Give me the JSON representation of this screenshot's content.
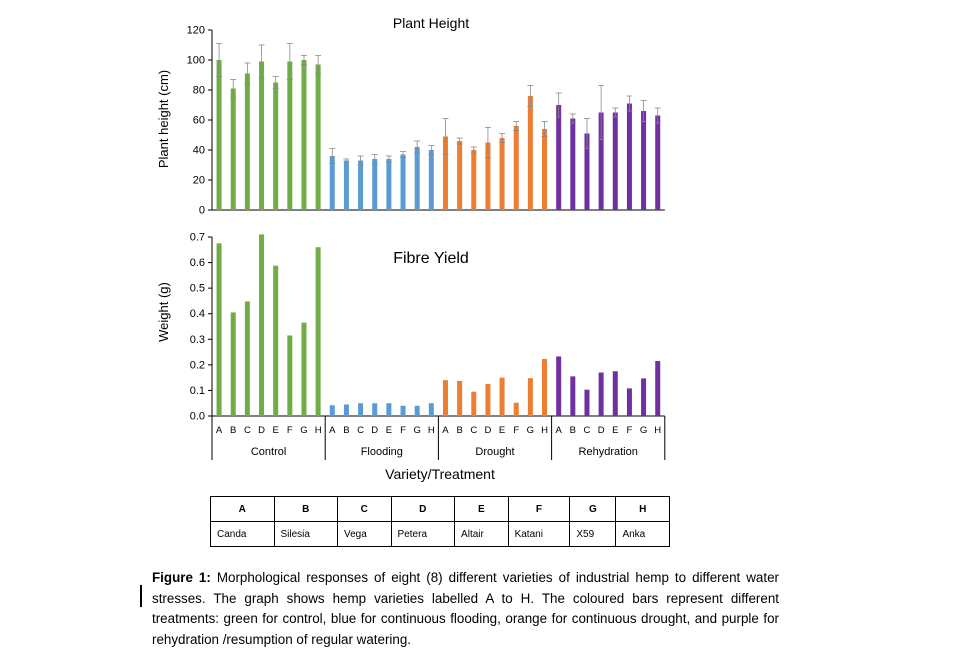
{
  "colors": {
    "control": "#70AD47",
    "flooding": "#5B9BD5",
    "drought": "#ED7D31",
    "rehydration": "#7030A0"
  },
  "chart_data": [
    {
      "type": "bar",
      "title": "Plant Height",
      "ylabel": "Plant height (cm)",
      "ylim": [
        0,
        120
      ],
      "yticks": [
        "0",
        "20",
        "40",
        "60",
        "80",
        "100",
        "120"
      ],
      "categories": [
        "A",
        "B",
        "C",
        "D",
        "E",
        "F",
        "G",
        "H"
      ],
      "error_bars": true,
      "series": [
        {
          "name": "Control",
          "values": [
            100,
            81,
            91,
            99,
            85,
            99,
            100,
            97
          ],
          "errors": [
            11,
            6,
            7,
            11,
            4,
            12,
            3,
            6
          ]
        },
        {
          "name": "Flooding",
          "values": [
            36,
            33,
            33,
            34,
            34,
            37,
            42,
            40
          ],
          "errors": [
            5,
            1,
            3,
            3,
            2,
            2,
            4,
            3
          ]
        },
        {
          "name": "Drought",
          "values": [
            49,
            46,
            40,
            45,
            48,
            56,
            76,
            54
          ],
          "errors": [
            12,
            2,
            2,
            10,
            3,
            3,
            7,
            5
          ]
        },
        {
          "name": "Rehydration",
          "values": [
            70,
            61,
            51,
            65,
            65,
            71,
            66,
            63
          ],
          "errors": [
            8,
            3,
            10,
            18,
            3,
            5,
            7,
            5
          ]
        }
      ]
    },
    {
      "type": "bar",
      "title": "Fibre Yield",
      "ylabel": "Weight (g)",
      "xlabel": "Variety/Treatment",
      "ylim": [
        0,
        0.7
      ],
      "yticks": [
        "0.0",
        "0.1",
        "0.2",
        "0.3",
        "0.4",
        "0.5",
        "0.6",
        "0.7"
      ],
      "categories": [
        "A",
        "B",
        "C",
        "D",
        "E",
        "F",
        "G",
        "H"
      ],
      "groups": [
        "Control",
        "Flooding",
        "Drought",
        "Rehydration"
      ],
      "series": [
        {
          "name": "Control",
          "values": [
            0.675,
            0.405,
            0.448,
            0.71,
            0.588,
            0.315,
            0.365,
            0.66
          ]
        },
        {
          "name": "Flooding",
          "values": [
            0.042,
            0.045,
            0.05,
            0.05,
            0.05,
            0.04,
            0.04,
            0.05
          ]
        },
        {
          "name": "Drought",
          "values": [
            0.14,
            0.137,
            0.095,
            0.125,
            0.15,
            0.052,
            0.148,
            0.223
          ]
        },
        {
          "name": "Rehydration",
          "values": [
            0.233,
            0.155,
            0.103,
            0.17,
            0.175,
            0.108,
            0.147,
            0.215
          ]
        }
      ]
    }
  ],
  "variety_table": {
    "codes": [
      "A",
      "B",
      "C",
      "D",
      "E",
      "F",
      "G",
      "H"
    ],
    "names": [
      "Canda",
      "Silesia",
      "Vega",
      "Petera",
      "Altair",
      "Katani",
      "X59",
      "Anka"
    ]
  },
  "caption": {
    "label": "Figure 1:",
    "text": " Morphological responses of eight (8) different varieties of industrial hemp to different water stresses. The graph shows hemp varieties labelled A to H. The coloured bars represent different treatments: green for control, blue for continuous flooding, orange for continuous drought, and purple for rehydration /resumption of regular watering."
  }
}
